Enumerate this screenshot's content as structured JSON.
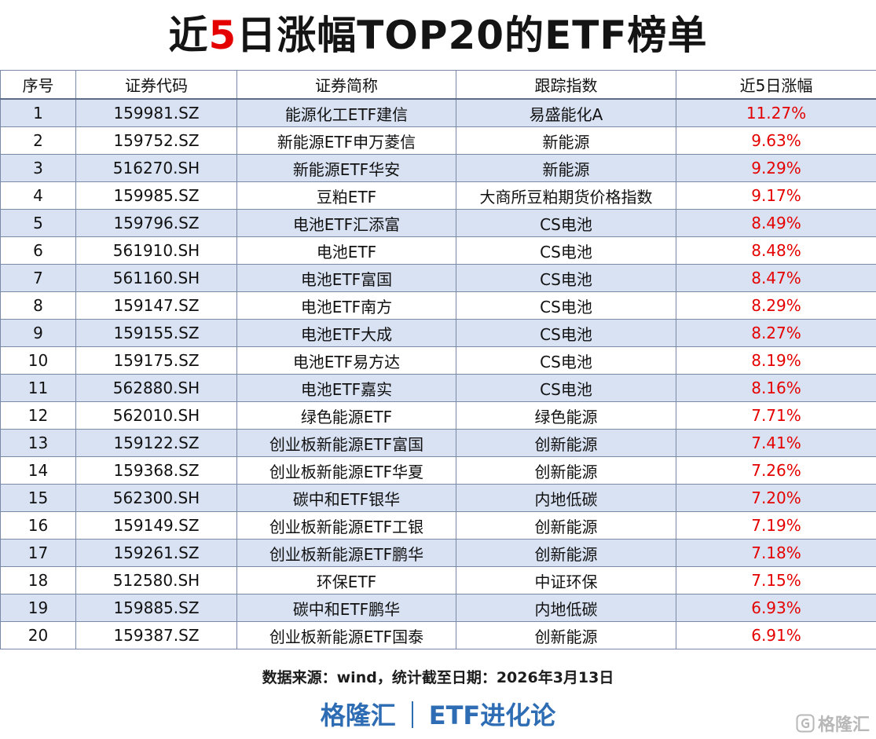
{
  "title": {
    "prefix": "近",
    "accent": "5",
    "suffix": "日涨幅TOP20的ETF榜单"
  },
  "colors": {
    "accent_red": "#e50000",
    "stripe_blue": "#d9e2f3",
    "footer_blue": "#2e6db4"
  },
  "table": {
    "headers": [
      "序号",
      "证券代码",
      "证券简称",
      "跟踪指数",
      "近5日涨幅"
    ],
    "rows": [
      {
        "rank": "1",
        "code": "159981.SZ",
        "name": "能源化工ETF建信",
        "index": "易盛能化A",
        "change": "11.27%"
      },
      {
        "rank": "2",
        "code": "159752.SZ",
        "name": "新能源ETF申万菱信",
        "index": "新能源",
        "change": "9.63%"
      },
      {
        "rank": "3",
        "code": "516270.SH",
        "name": "新能源ETF华安",
        "index": "新能源",
        "change": "9.29%"
      },
      {
        "rank": "4",
        "code": "159985.SZ",
        "name": "豆粕ETF",
        "index": "大商所豆粕期货价格指数",
        "change": "9.17%"
      },
      {
        "rank": "5",
        "code": "159796.SZ",
        "name": "电池ETF汇添富",
        "index": "CS电池",
        "change": "8.49%"
      },
      {
        "rank": "6",
        "code": "561910.SH",
        "name": "电池ETF",
        "index": "CS电池",
        "change": "8.48%"
      },
      {
        "rank": "7",
        "code": "561160.SH",
        "name": "电池ETF富国",
        "index": "CS电池",
        "change": "8.47%"
      },
      {
        "rank": "8",
        "code": "159147.SZ",
        "name": "电池ETF南方",
        "index": "CS电池",
        "change": "8.29%"
      },
      {
        "rank": "9",
        "code": "159155.SZ",
        "name": "电池ETF大成",
        "index": "CS电池",
        "change": "8.27%"
      },
      {
        "rank": "10",
        "code": "159175.SZ",
        "name": "电池ETF易方达",
        "index": "CS电池",
        "change": "8.19%"
      },
      {
        "rank": "11",
        "code": "562880.SH",
        "name": "电池ETF嘉实",
        "index": "CS电池",
        "change": "8.16%"
      },
      {
        "rank": "12",
        "code": "562010.SH",
        "name": "绿色能源ETF",
        "index": "绿色能源",
        "change": "7.71%"
      },
      {
        "rank": "13",
        "code": "159122.SZ",
        "name": "创业板新能源ETF富国",
        "index": "创新能源",
        "change": "7.41%"
      },
      {
        "rank": "14",
        "code": "159368.SZ",
        "name": "创业板新能源ETF华夏",
        "index": "创新能源",
        "change": "7.26%"
      },
      {
        "rank": "15",
        "code": "562300.SH",
        "name": "碳中和ETF银华",
        "index": "内地低碳",
        "change": "7.20%"
      },
      {
        "rank": "16",
        "code": "159149.SZ",
        "name": "创业板新能源ETF工银",
        "index": "创新能源",
        "change": "7.19%"
      },
      {
        "rank": "17",
        "code": "159261.SZ",
        "name": "创业板新能源ETF鹏华",
        "index": "创新能源",
        "change": "7.18%"
      },
      {
        "rank": "18",
        "code": "512580.SH",
        "name": "环保ETF",
        "index": "中证环保",
        "change": "7.15%"
      },
      {
        "rank": "19",
        "code": "159885.SZ",
        "name": "碳中和ETF鹏华",
        "index": "内地低碳",
        "change": "6.93%"
      },
      {
        "rank": "20",
        "code": "159387.SZ",
        "name": "创业板新能源ETF国泰",
        "index": "创新能源",
        "change": "6.91%"
      }
    ]
  },
  "source_note": "数据来源：wind，统计截至日期：2026年3月13日",
  "footer": {
    "brand": "格隆汇",
    "column": "ETF进化论"
  },
  "watermark": {
    "icon": "gelonghui-logo-icon",
    "text": "格隆汇"
  }
}
